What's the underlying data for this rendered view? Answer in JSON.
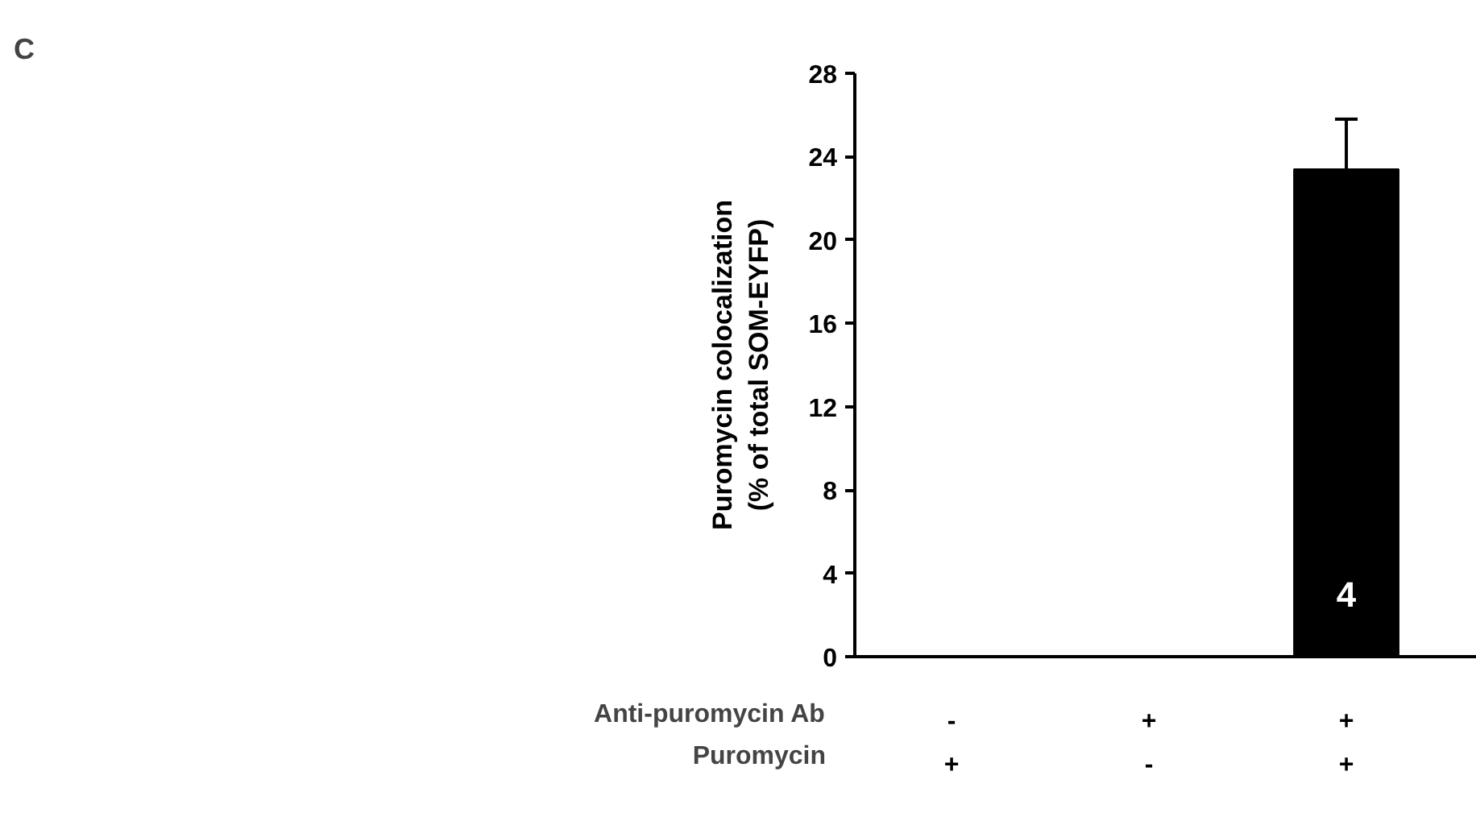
{
  "chart_data": {
    "type": "bar",
    "categories": [
      "-\n+",
      "+\n-",
      "+\n+"
    ],
    "values": [
      0,
      0,
      23.4
    ],
    "errors": [
      null,
      null,
      2.4
    ],
    "color": "#000000",
    "ylabel": "Puromycin colocalization\n(% of total SOM-EYFP)",
    "ylim": [
      0,
      28
    ],
    "yticks": [
      0,
      4,
      8,
      12,
      16,
      20,
      24,
      28
    ],
    "grid": false,
    "annotations": [
      "C",
      "Anti-puromycin Ab",
      "Puromycin",
      "4"
    ]
  }
}
